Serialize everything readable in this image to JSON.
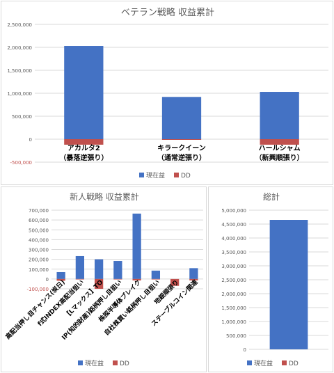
{
  "colors": {
    "positive": "#4472C4",
    "negative": "#C0504D",
    "grid": "#D9D9D9",
    "axis_text": "#595959"
  },
  "chart_data": [
    {
      "type": "bar",
      "stacked": true,
      "title": "ベテラン戦略 収益累計",
      "categories": [
        "アカルタ2\n（暴落逆張り）",
        "キラークイーン\n（通常逆張り）",
        "ハールシャム\n（新興順張り）"
      ],
      "series": [
        {
          "name": "現在益",
          "color": "#4472C4",
          "values": [
            2030000,
            920000,
            1030000
          ]
        },
        {
          "name": "DD",
          "color": "#C0504D",
          "values": [
            -120000,
            -15000,
            -120000
          ]
        }
      ],
      "ylim": [
        -500000,
        2500000
      ],
      "yticks": [
        -500000,
        0,
        500000,
        1000000,
        1500000,
        2000000,
        2500000
      ],
      "ytick_labels": [
        "-500,000",
        "0",
        "500,000",
        "1,000,000",
        "1,500,000",
        "2,000,000",
        "2,500,000"
      ],
      "grid": true,
      "legend": "bottom"
    },
    {
      "type": "bar",
      "stacked": true,
      "title": "新人戦略 収益累計",
      "categories": [
        "高配当押し目チャンス(炭日)",
        "f式INDEX高配当狙い",
        "【Lマックス】TO",
        "IP(知的財産)銘柄押し目狙い",
        "株探半導体ブレイク",
        "自社株買い銘柄押し目狙い",
        "地銀順張り",
        "ステーブルコイン関連"
      ],
      "series": [
        {
          "name": "現在益",
          "color": "#4472C4",
          "values": [
            70000,
            233000,
            200000,
            183000,
            665000,
            85000,
            0,
            110000
          ]
        },
        {
          "name": "DD",
          "color": "#C0504D",
          "values": [
            -18000,
            -5000,
            -100000,
            -5000,
            -15000,
            -5000,
            -70000,
            -15000
          ]
        }
      ],
      "ylim": [
        -100000,
        700000
      ],
      "yticks": [
        -100000,
        0,
        100000,
        200000,
        300000,
        400000,
        500000,
        600000,
        700000
      ],
      "ytick_labels": [
        "-100,000",
        "0",
        "100,000",
        "200,000",
        "300,000",
        "400,000",
        "500,000",
        "600,000",
        "700,000"
      ],
      "grid": true,
      "legend": "bottom"
    },
    {
      "type": "bar",
      "stacked": true,
      "title": "総計",
      "categories": [
        ""
      ],
      "series": [
        {
          "name": "現在益",
          "color": "#4472C4",
          "values": [
            4650000
          ]
        },
        {
          "name": "DD",
          "color": "#C0504D",
          "values": [
            0
          ]
        }
      ],
      "ylim": [
        0,
        5000000
      ],
      "yticks": [
        0,
        500000,
        1000000,
        1500000,
        2000000,
        2500000,
        3000000,
        3500000,
        4000000,
        4500000,
        5000000
      ],
      "ytick_labels": [
        "0",
        "500,000",
        "1,000,000",
        "1,500,000",
        "2,000,000",
        "2,500,000",
        "3,000,000",
        "3,500,000",
        "4,000,000",
        "4,500,000",
        "5,000,000"
      ],
      "grid": true,
      "legend": "bottom"
    }
  ]
}
